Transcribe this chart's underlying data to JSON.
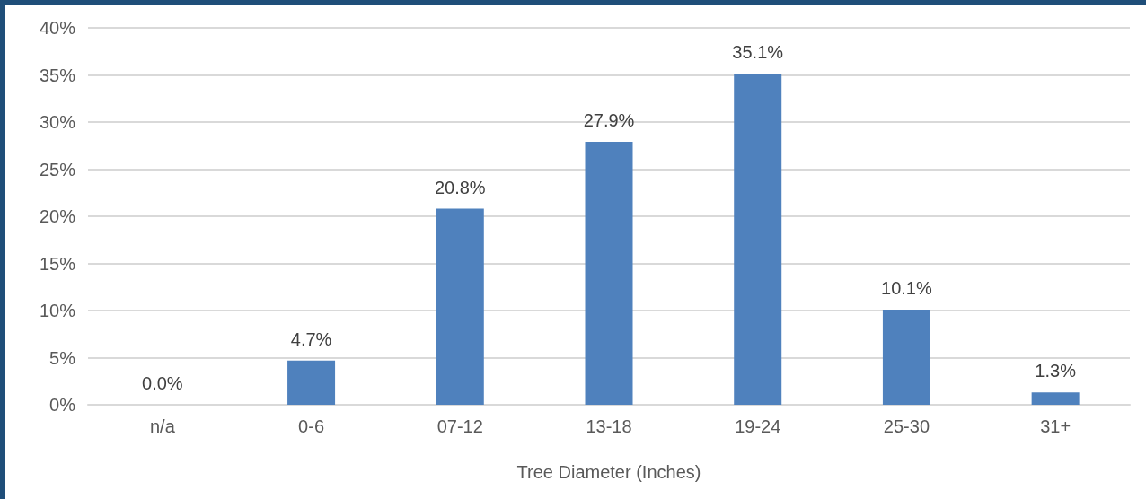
{
  "chart_data": {
    "type": "bar",
    "xlabel": "Tree Diameter (Inches)",
    "categories": [
      "n/a",
      "0-6",
      "07-12",
      "13-18",
      "19-24",
      "25-30",
      "31+"
    ],
    "values": [
      0.0,
      4.7,
      20.8,
      27.9,
      35.1,
      10.1,
      1.3
    ],
    "value_labels": [
      "0.0%",
      "4.7%",
      "20.8%",
      "27.9%",
      "35.1%",
      "10.1%",
      "1.3%"
    ],
    "color": "#4f81bd",
    "ylim": [
      0,
      40
    ],
    "yticks": [
      {
        "value": 0,
        "label": "0%"
      },
      {
        "value": 5,
        "label": "5%"
      },
      {
        "value": 10,
        "label": "10%"
      },
      {
        "value": 15,
        "label": "15%"
      },
      {
        "value": 20,
        "label": "20%"
      },
      {
        "value": 25,
        "label": "25%"
      },
      {
        "value": 30,
        "label": "30%"
      },
      {
        "value": 35,
        "label": "35%"
      },
      {
        "value": 40,
        "label": "40%"
      }
    ],
    "grid": "y"
  }
}
